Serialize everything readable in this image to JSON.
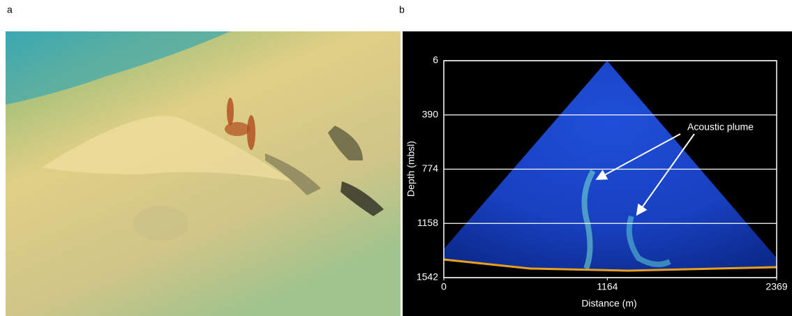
{
  "panels": [
    {
      "label": "a"
    },
    {
      "label": "b",
      "chart_data": {
        "type": "image",
        "x_label": "Distance (m)",
        "y_label": "Depth (mbsl)",
        "xlim": [
          0,
          2369
        ],
        "xticks": [
          0,
          1164,
          2369
        ],
        "ylim": [
          1542,
          6
        ],
        "yticks": [
          6,
          390,
          774,
          1158,
          1542
        ],
        "grid": true,
        "annotation": "Acoustic plume"
      }
    }
  ]
}
